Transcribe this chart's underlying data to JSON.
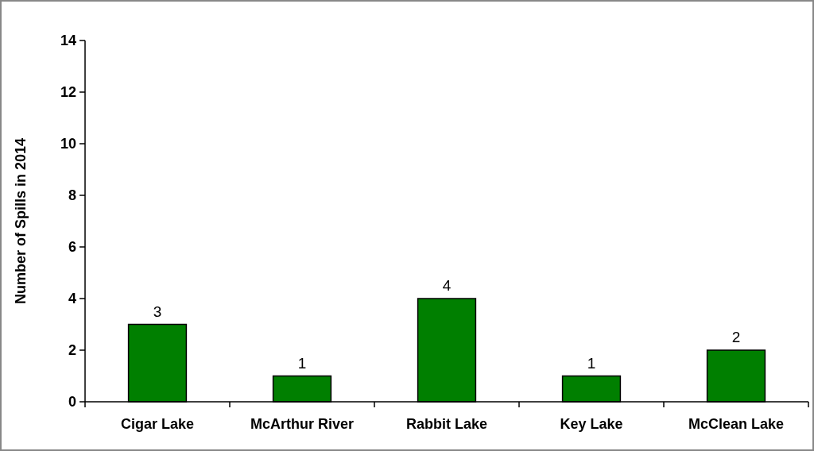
{
  "chart_data": {
    "type": "bar",
    "ylabel": "Number of Spills in 2014",
    "categories": [
      "Cigar Lake",
      "McArthur River",
      "Rabbit Lake",
      "Key Lake",
      "McClean Lake"
    ],
    "values": [
      3,
      1,
      4,
      1,
      2
    ],
    "color": "#007f00",
    "ylim": [
      0,
      14
    ],
    "yticks": [
      0,
      2,
      4,
      6,
      8,
      10,
      12,
      14
    ],
    "data_labels": true
  }
}
